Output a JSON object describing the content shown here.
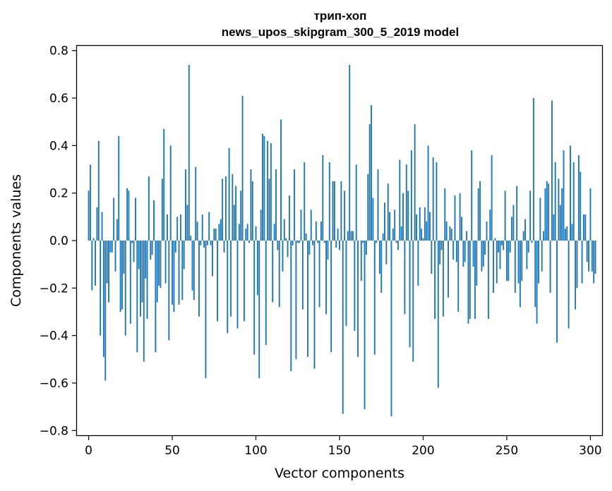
{
  "chart_data": {
    "type": "bar",
    "title": "трип-хоп",
    "subtitle": "news_upos_skipgram_300_5_2019 model",
    "xlabel": "Vector components",
    "ylabel": "Components values",
    "xlim": [
      -7,
      307
    ],
    "ylim": [
      -0.82,
      0.82
    ],
    "xticks": [
      0,
      50,
      100,
      150,
      200,
      250,
      300
    ],
    "yticks": [
      -0.8,
      -0.6,
      -0.4,
      -0.2,
      0.0,
      0.2,
      0.4,
      0.6,
      0.8
    ],
    "ytick_labels": [
      "−0.8",
      "−0.6",
      "−0.4",
      "−0.2",
      "0.0",
      "0.2",
      "0.4",
      "0.6",
      "0.8"
    ],
    "grid": false,
    "bar_color": "#1f77b4",
    "values": [
      0.21,
      0.32,
      -0.21,
      0.01,
      -0.19,
      0.14,
      0.42,
      -0.4,
      0.12,
      -0.49,
      -0.59,
      -0.18,
      -0.26,
      -0.05,
      -0.05,
      0.18,
      -0.13,
      0.09,
      0.44,
      -0.3,
      -0.29,
      -0.14,
      -0.4,
      0.22,
      0.21,
      -0.35,
      -0.01,
      -0.09,
      0.18,
      -0.47,
      -0.12,
      -0.32,
      -0.26,
      -0.51,
      -0.16,
      -0.33,
      0.27,
      -0.08,
      -0.06,
      0.17,
      -0.47,
      -0.26,
      -0.19,
      -0.2,
      0.26,
      0.47,
      -0.18,
      0.11,
      -0.42,
      0.4,
      -0.27,
      -0.3,
      -0.05,
      0.1,
      -0.27,
      0.11,
      -0.25,
      -0.12,
      0.3,
      0.15,
      0.74,
      0.02,
      -0.21,
      -0.25,
      0.31,
      0.08,
      -0.32,
      -0.02,
      0.11,
      -0.03,
      -0.58,
      -0.02,
      0.12,
      -0.02,
      -0.15,
      0.05,
      0.05,
      -0.34,
      0.07,
      0.09,
      0.26,
      -0.05,
      0.27,
      -0.39,
      0.39,
      -0.32,
      0.28,
      0.15,
      0.23,
      -0.37,
      0.07,
      0.21,
      0.61,
      -0.34,
      0.05,
      0.07,
      -0.01,
      0.3,
      0.25,
      -0.48,
      0.06,
      -0.23,
      -0.58,
      0.13,
      0.45,
      0.44,
      -0.44,
      0.42,
      0.26,
      0.41,
      -0.26,
      0.07,
      0.3,
      -0.04,
      -0.28,
      0.51,
      -0.13,
      0.09,
      0.01,
      -0.07,
      0.19,
      -0.55,
      -0.02,
      0.3,
      -0.5,
      -0.01,
      -0.01,
      0.13,
      -0.29,
      0.33,
      0.03,
      -0.49,
      -0.06,
      0.13,
      -0.02,
      -0.54,
      0.08,
      -0.01,
      -0.28,
      0.08,
      0.36,
      -0.01,
      -0.31,
      -0.08,
      0.33,
      -0.47,
      0.25,
      0.25,
      -0.03,
      0.05,
      -0.04,
      0.25,
      -0.73,
      0.21,
      -0.36,
      0.04,
      0.74,
      0.04,
      0.04,
      -0.38,
      0.32,
      -0.49,
      0.0,
      -0.17,
      -0.01,
      -0.71,
      -0.06,
      0.28,
      0.49,
      0.57,
      0.18,
      -0.48,
      -0.01,
      0.3,
      -0.14,
      -0.22,
      0.03,
      0.16,
      -0.1,
      0.24,
      0.12,
      -0.74,
      0.05,
      0.13,
      -0.01,
      -0.04,
      0.34,
      0.06,
      0.2,
      -0.31,
      0.32,
      0.21,
      -0.45,
      0.38,
      -0.51,
      0.49,
      0.11,
      -0.19,
      0.14,
      0.05,
      0.01,
      0.14,
      0.08,
      0.4,
      0.12,
      -0.14,
      0.35,
      -0.33,
      0.33,
      -0.62,
      -0.1,
      -0.04,
      -0.32,
      0.22,
      0.08,
      -0.24,
      0.06,
      0.05,
      -0.08,
      0.19,
      -0.09,
      -0.3,
      0.2,
      0.1,
      -0.11,
      -0.09,
      0.04,
      -0.35,
      -0.33,
      0.38,
      -0.11,
      -0.33,
      -0.19,
      0.22,
      0.25,
      -0.13,
      -0.11,
      -0.06,
      0.08,
      -0.33,
      0.13,
      0.36,
      -0.22,
      0.01,
      -0.18,
      -0.05,
      -0.12,
      -0.02,
      -0.04,
      0.21,
      -0.17,
      -0.17,
      -0.05,
      0.1,
      0.15,
      -0.22,
      0.23,
      -0.18,
      -0.28,
      -0.17,
      0.04,
      0.09,
      -0.12,
      -0.05,
      0.21,
      -0.01,
      0.6,
      -0.28,
      -0.35,
      -0.18,
      0.18,
      -0.13,
      0.04,
      0.22,
      0.25,
      0.24,
      -0.22,
      0.59,
      0.11,
      0.33,
      -0.43,
      0.26,
      0.15,
      0.22,
      0.38,
      0.05,
      0.06,
      -0.37,
      0.4,
      0.07,
      0.33,
      -0.29,
      -0.2,
      0.36,
      0.29,
      -0.18,
      0.11,
      0.11,
      -0.09,
      -0.13,
      0.22,
      -0.13,
      -0.18,
      -0.14
    ]
  }
}
